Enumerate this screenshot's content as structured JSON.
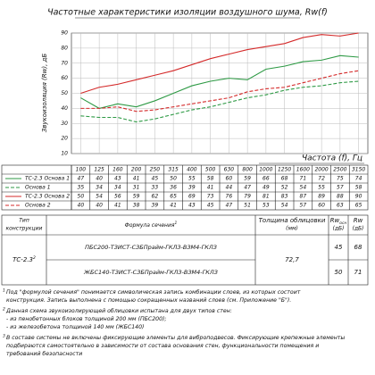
{
  "chart_data": {
    "type": "line",
    "title": "Частотные характеристики изоляции воздушного шума, Rw(f)",
    "y_label": "Звукоизоляция (Rw), дБ",
    "x_label": "Частота (f), Гц",
    "categories": [
      "100",
      "125",
      "160",
      "200",
      "250",
      "315",
      "400",
      "500",
      "630",
      "800",
      "1000",
      "1250",
      "1600",
      "2000",
      "2500",
      "3150"
    ],
    "ylim": [
      10,
      90
    ],
    "yticks": [
      10,
      20,
      30,
      40,
      50,
      60,
      70,
      80,
      90
    ],
    "grid": true,
    "series": [
      {
        "name": "ТС-2.3 Основа 1",
        "color": "#2e9a45",
        "style": "solid",
        "values": [
          47,
          40,
          43,
          41,
          45,
          50,
          55,
          58,
          60,
          59,
          66,
          68,
          71,
          72,
          75,
          74
        ]
      },
      {
        "name": "Основа 1",
        "color": "#2e9a45",
        "style": "dashed",
        "values": [
          35,
          34,
          34,
          31,
          33,
          36,
          39,
          41,
          44,
          47,
          49,
          52,
          54,
          55,
          57,
          58
        ]
      },
      {
        "name": "ТС-2.3 Основа 2",
        "color": "#d42a2a",
        "style": "solid",
        "values": [
          50,
          54,
          56,
          59,
          62,
          65,
          69,
          73,
          76,
          79,
          81,
          83,
          87,
          89,
          88,
          90
        ]
      },
      {
        "name": "Основа 2",
        "color": "#d42a2a",
        "style": "dashed",
        "values": [
          40,
          40,
          41,
          38,
          39,
          41,
          43,
          45,
          47,
          51,
          53,
          54,
          57,
          60,
          63,
          65
        ]
      }
    ]
  },
  "table": {
    "headers": [
      {
        "lines": [
          "Тип",
          "конструкции"
        ]
      },
      {
        "text": "Формула сечения",
        "sup": "1"
      },
      {
        "lines": [
          "Толщина облицовки",
          "(мм)"
        ]
      },
      {
        "text": "Rw",
        "sub": "осн",
        "unit": "(дБ)"
      },
      {
        "text": "Rw",
        "unit": "(дБ)"
      }
    ],
    "type": {
      "text": "ТС-2.3",
      "sup": "2"
    },
    "thickness": "72,7",
    "rows": [
      {
        "formula": "ПБС200-ТЗИСТ-СЗБПрайм-ГКЛЗ-ВЗМ4-ГКЛЗ",
        "rw_base": "45",
        "rw": "68"
      },
      {
        "formula": "ЖБС140-ТЗИСТ-СЗБПрайм-ГКЛЗ-ВЗМ4-ГКЛЗ",
        "rw_base": "50",
        "rw": "71"
      }
    ]
  },
  "footnotes": [
    {
      "mark": "1",
      "lines": [
        "Под \"формулой сечения\" понимается символическая запись комбинации слоев, из которых состоит",
        "конструкция. Запись выполнена с помощью сокращенных названий слоев (см. Приложение \"Б\")."
      ]
    },
    {
      "mark": "2",
      "lines": [
        "Данная схема звукоизолирующей облицовки испытана для двух типов стен:",
        "- из пенобетонных блоков толщиной 200 мм (ПБС200);",
        "- из железобетона толщиной 140 мм (ЖБС140)"
      ]
    },
    {
      "mark": "3",
      "lines": [
        "В составе системы не включены фиксирующие элементы для виброподвесов. Фиксирующие крепежные элементы",
        "подбираются самостоятельно в зависимости от состава основания стен, функциональности помещения и",
        "требований безопасности"
      ]
    }
  ]
}
